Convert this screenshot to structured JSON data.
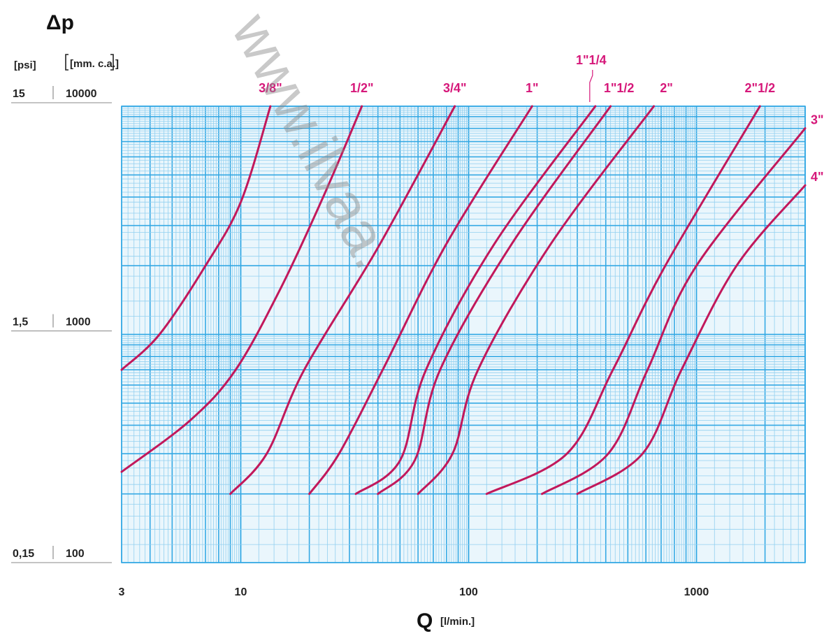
{
  "chart_data": {
    "type": "line",
    "x_scale": "log",
    "y_scale": "log",
    "xlim": [
      3,
      3000
    ],
    "ylim": [
      100,
      10000
    ],
    "grid": true,
    "title": "Δp",
    "xlabel": "Q",
    "xlabel_unit": "[l/min.]",
    "y_units": [
      "[psi]",
      "[mm. c.a.]"
    ],
    "x_ticks": [
      {
        "value": 3,
        "label": "3"
      },
      {
        "value": 10,
        "label": "10"
      },
      {
        "value": 100,
        "label": "100"
      },
      {
        "value": 1000,
        "label": "1000"
      }
    ],
    "y_ticks": [
      {
        "value": 10000,
        "psi": "15",
        "mm": "10000"
      },
      {
        "value": 1000,
        "psi": "1,5",
        "mm": "1000"
      },
      {
        "value": 100,
        "psi": "0,15",
        "mm": "100"
      }
    ],
    "series": [
      {
        "name": "3/8\"",
        "points": [
          [
            3,
            700
          ],
          [
            4.4,
            1000
          ],
          [
            7,
            2000
          ],
          [
            10,
            3800
          ],
          [
            13.5,
            10000
          ]
        ]
      },
      {
        "name": "1/2\"",
        "points": [
          [
            3,
            250
          ],
          [
            6,
            420
          ],
          [
            9.5,
            700
          ],
          [
            15,
            1600
          ],
          [
            23,
            4000
          ],
          [
            34,
            10000
          ]
        ]
      },
      {
        "name": "3/4\"",
        "points": [
          [
            9,
            200
          ],
          [
            13,
            300
          ],
          [
            19,
            700
          ],
          [
            40,
            2400
          ],
          [
            87,
            10000
          ]
        ]
      },
      {
        "name": "1\"",
        "points": [
          [
            20,
            200
          ],
          [
            27,
            300
          ],
          [
            42,
            700
          ],
          [
            80,
            2500
          ],
          [
            190,
            10000
          ]
        ]
      },
      {
        "name": "1\"1/4",
        "points": [
          [
            32,
            200
          ],
          [
            50,
            280
          ],
          [
            65,
            700
          ],
          [
            130,
            2500
          ],
          [
            360,
            10000
          ]
        ]
      },
      {
        "name": "1\"1/2",
        "points": [
          [
            40,
            200
          ],
          [
            58,
            280
          ],
          [
            75,
            700
          ],
          [
            155,
            2500
          ],
          [
            420,
            10000
          ]
        ]
      },
      {
        "name": "2\"",
        "points": [
          [
            60,
            200
          ],
          [
            85,
            300
          ],
          [
            110,
            700
          ],
          [
            230,
            2500
          ],
          [
            650,
            10000
          ]
        ]
      },
      {
        "name": "2\"1/2",
        "points": [
          [
            120,
            200
          ],
          [
            270,
            300
          ],
          [
            430,
            700
          ],
          [
            730,
            2000
          ],
          [
            1900,
            10000
          ]
        ]
      },
      {
        "name": "3\"",
        "points": [
          [
            210,
            200
          ],
          [
            410,
            300
          ],
          [
            610,
            700
          ],
          [
            1000,
            2000
          ],
          [
            3000,
            8000
          ]
        ]
      },
      {
        "name": "4\"",
        "points": [
          [
            300,
            200
          ],
          [
            580,
            300
          ],
          [
            860,
            700
          ],
          [
            1500,
            2000
          ],
          [
            3000,
            4500
          ]
        ]
      }
    ]
  },
  "watermark": "www.ilvaa.",
  "colors": {
    "grid_major": "#35a9e4",
    "grid_minor": "#92d0f0",
    "plot_bg": "#eaf6fc",
    "curve": "#c2185b",
    "series_label": "#d6187a"
  }
}
